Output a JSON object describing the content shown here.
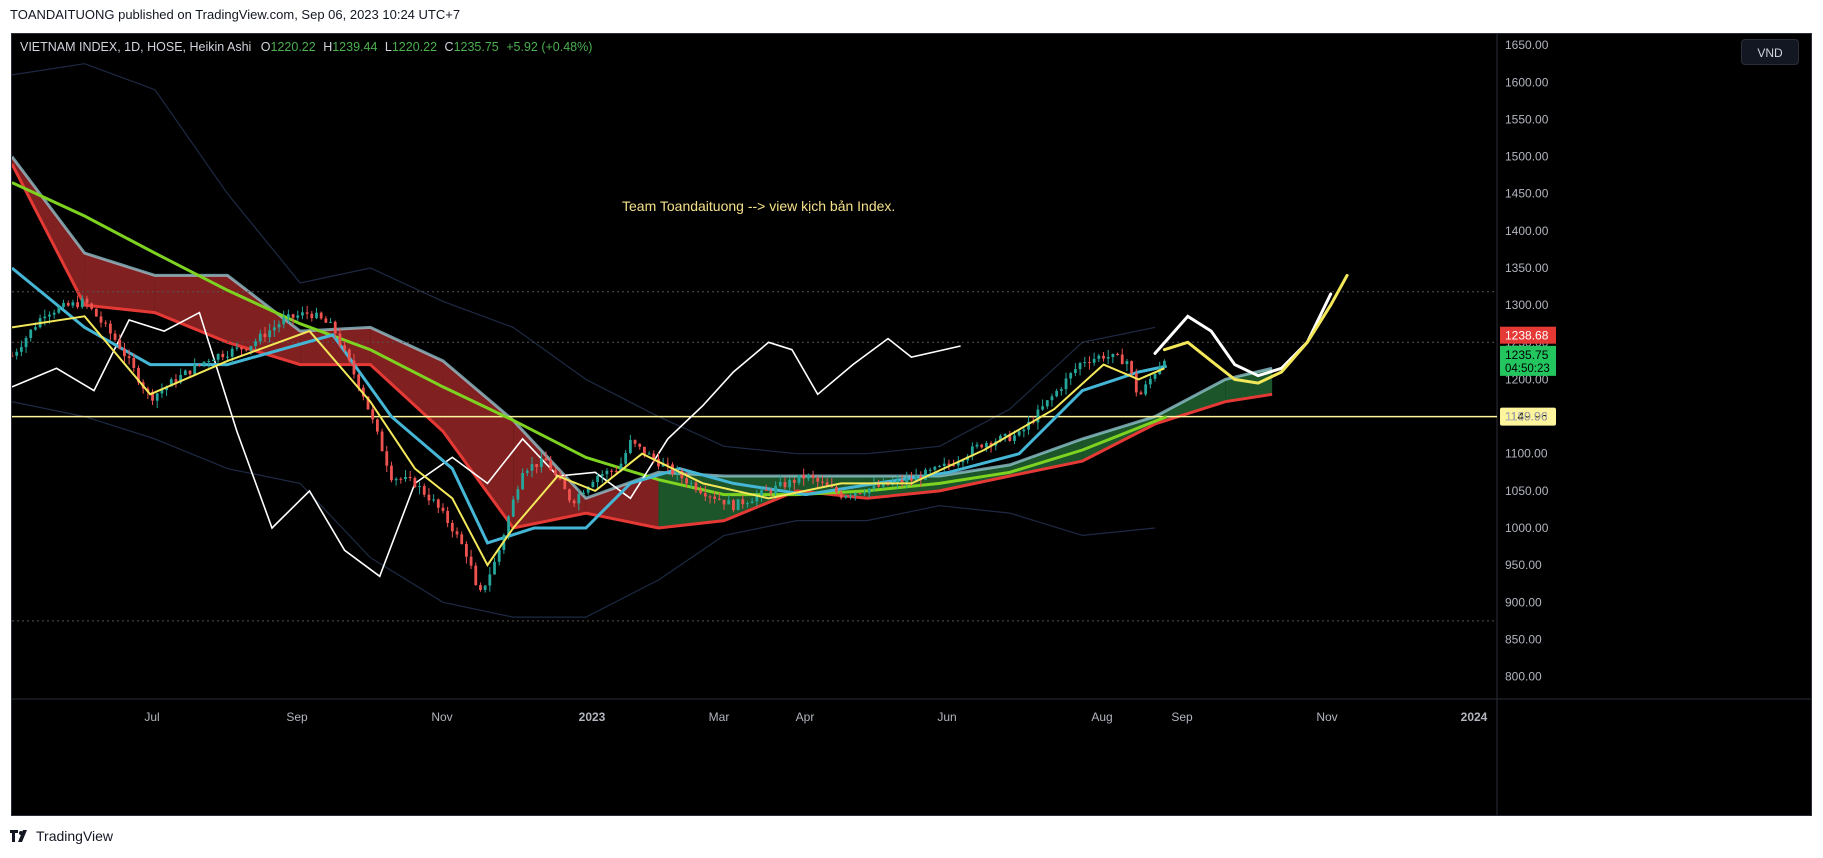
{
  "header": {
    "publish_line": "TOANDAITUONG published on TradingView.com, Sep 06, 2023 10:24 UTC+7"
  },
  "legend": {
    "symbol": "VIETNAM INDEX, 1D, HOSE, Heikin Ashi",
    "open_label": "O",
    "open": "1220.22",
    "high_label": "H",
    "high": "1239.44",
    "low_label": "L",
    "low": "1220.22",
    "close_label": "C",
    "close": "1235.75",
    "change": "+5.92 (+0.48%)"
  },
  "currency_button": "VND",
  "annotation": "Team Toandaituong --> view kịch bản Index.",
  "footer": {
    "brand": "TradingView"
  },
  "colors": {
    "background": "#000000",
    "up": "#26a69a",
    "down": "#ef5350",
    "kijun": "#45b6d6",
    "tenkan": "#f3e85a",
    "lagging": "#ffffff",
    "ma": "#7ed321",
    "cloud_bull": "#1f5e2e",
    "cloud_bear": "#8f2424",
    "price_label_red": "#e53935",
    "price_label_green": "#22c55e",
    "level_label": "#fff59d"
  },
  "chart_data": {
    "type": "line",
    "timeframe": "1D",
    "candle_style": "Heikin Ashi",
    "x_ticks": [
      "Jul",
      "Sep",
      "Nov",
      "2023",
      "Mar",
      "Apr",
      "Jun",
      "Aug",
      "Sep",
      "Nov",
      "2024"
    ],
    "y_ticks": [
      800,
      850,
      900,
      950,
      1000,
      1050,
      1100,
      1150,
      1200,
      1250,
      1300,
      1350,
      1400,
      1450,
      1500,
      1550,
      1600,
      1650
    ],
    "y_tick_labels": [
      "800.00",
      "850.00",
      "900.00",
      "950.00",
      "1000.00",
      "1050.00",
      "1100.00",
      "1150.00",
      "1200.00",
      "1250.00",
      "1300.00",
      "1350.00",
      "1400.00",
      "1450.00",
      "1500.00",
      "1550.00",
      "1600.00",
      "1650.00"
    ],
    "ylim": [
      790,
      1665
    ],
    "xlim": [
      "2022-05-01",
      "2024-01-25"
    ],
    "horizontal_levels": [
      {
        "value": 1149.96,
        "label": "1149.96",
        "style": "solid"
      },
      {
        "value": 1318,
        "style": "dotted"
      },
      {
        "value": 1250,
        "style": "dotted"
      },
      {
        "value": 875,
        "style": "dotted"
      }
    ],
    "price_labels": [
      {
        "value": 1238.68,
        "label": "1238.68",
        "kind": "high"
      },
      {
        "value": 1235.75,
        "label": "1235.75",
        "countdown": "04:50:23",
        "kind": "last"
      }
    ],
    "series": [
      {
        "key": "price",
        "points": [
          [
            "2022-05-01",
            1232
          ],
          [
            "2022-05-15",
            1290
          ],
          [
            "2022-06-01",
            1305
          ],
          [
            "2022-06-15",
            1250
          ],
          [
            "2022-06-29",
            1175
          ],
          [
            "2022-07-10",
            1200
          ],
          [
            "2022-07-25",
            1230
          ],
          [
            "2022-08-10",
            1245
          ],
          [
            "2022-08-25",
            1280
          ],
          [
            "2022-09-05",
            1290
          ],
          [
            "2022-09-15",
            1270
          ],
          [
            "2022-09-28",
            1180
          ],
          [
            "2022-10-10",
            1070
          ],
          [
            "2022-10-20",
            1060
          ],
          [
            "2022-10-28",
            1035
          ],
          [
            "2022-11-05",
            1000
          ],
          [
            "2022-11-12",
            960
          ],
          [
            "2022-11-16",
            905
          ],
          [
            "2022-11-24",
            960
          ],
          [
            "2022-12-05",
            1080
          ],
          [
            "2022-12-15",
            1090
          ],
          [
            "2022-12-26",
            1035
          ],
          [
            "2023-01-05",
            1070
          ],
          [
            "2023-01-15",
            1080
          ],
          [
            "2023-01-20",
            1115
          ],
          [
            "2023-02-05",
            1080
          ],
          [
            "2023-02-20",
            1050
          ],
          [
            "2023-03-05",
            1030
          ],
          [
            "2023-03-20",
            1050
          ],
          [
            "2023-04-05",
            1070
          ],
          [
            "2023-04-20",
            1045
          ],
          [
            "2023-05-05",
            1055
          ],
          [
            "2023-05-20",
            1065
          ],
          [
            "2023-06-05",
            1085
          ],
          [
            "2023-06-20",
            1115
          ],
          [
            "2023-07-05",
            1125
          ],
          [
            "2023-07-20",
            1180
          ],
          [
            "2023-08-01",
            1225
          ],
          [
            "2023-08-10",
            1232
          ],
          [
            "2023-08-20",
            1225
          ],
          [
            "2023-08-25",
            1175
          ],
          [
            "2023-09-06",
            1235.75
          ]
        ]
      },
      {
        "key": "tenkan",
        "points": [
          [
            "2022-05-01",
            1270
          ],
          [
            "2022-06-01",
            1285
          ],
          [
            "2022-06-29",
            1180
          ],
          [
            "2022-08-01",
            1225
          ],
          [
            "2022-09-05",
            1265
          ],
          [
            "2022-10-01",
            1170
          ],
          [
            "2022-10-20",
            1080
          ],
          [
            "2022-11-05",
            1040
          ],
          [
            "2022-11-20",
            950
          ],
          [
            "2022-12-01",
            1000
          ],
          [
            "2022-12-20",
            1070
          ],
          [
            "2023-01-05",
            1050
          ],
          [
            "2023-01-25",
            1100
          ],
          [
            "2023-02-20",
            1060
          ],
          [
            "2023-03-20",
            1040
          ],
          [
            "2023-04-20",
            1060
          ],
          [
            "2023-05-20",
            1060
          ],
          [
            "2023-06-20",
            1105
          ],
          [
            "2023-07-20",
            1160
          ],
          [
            "2023-08-10",
            1220
          ],
          [
            "2023-08-25",
            1200
          ],
          [
            "2023-09-05",
            1215
          ]
        ]
      },
      {
        "key": "kijun",
        "points": [
          [
            "2022-05-01",
            1350
          ],
          [
            "2022-06-01",
            1270
          ],
          [
            "2022-06-29",
            1220
          ],
          [
            "2022-08-01",
            1220
          ],
          [
            "2022-09-15",
            1260
          ],
          [
            "2022-10-10",
            1150
          ],
          [
            "2022-11-05",
            1080
          ],
          [
            "2022-11-20",
            980
          ],
          [
            "2022-12-10",
            1000
          ],
          [
            "2023-01-01",
            1000
          ],
          [
            "2023-01-20",
            1060
          ],
          [
            "2023-02-10",
            1080
          ],
          [
            "2023-03-05",
            1060
          ],
          [
            "2023-04-05",
            1045
          ],
          [
            "2023-05-05",
            1060
          ],
          [
            "2023-06-05",
            1075
          ],
          [
            "2023-07-05",
            1100
          ],
          [
            "2023-08-01",
            1185
          ],
          [
            "2023-08-25",
            1210
          ],
          [
            "2023-09-06",
            1218
          ]
        ]
      },
      {
        "key": "ma",
        "points": [
          [
            "2022-05-01",
            1465
          ],
          [
            "2022-06-01",
            1420
          ],
          [
            "2022-07-01",
            1370
          ],
          [
            "2022-08-01",
            1320
          ],
          [
            "2022-09-01",
            1275
          ],
          [
            "2022-10-01",
            1240
          ],
          [
            "2022-11-01",
            1190
          ],
          [
            "2022-12-01",
            1145
          ],
          [
            "2023-01-01",
            1095
          ],
          [
            "2023-02-01",
            1065
          ],
          [
            "2023-03-01",
            1045
          ],
          [
            "2023-04-01",
            1045
          ],
          [
            "2023-05-01",
            1050
          ],
          [
            "2023-06-01",
            1060
          ],
          [
            "2023-07-01",
            1075
          ],
          [
            "2023-08-01",
            1105
          ],
          [
            "2023-09-06",
            1150
          ]
        ]
      },
      {
        "key": "lagging",
        "points": [
          [
            "2022-05-01",
            1190
          ],
          [
            "2022-05-20",
            1215
          ],
          [
            "2022-06-05",
            1185
          ],
          [
            "2022-06-20",
            1280
          ],
          [
            "2022-07-05",
            1265
          ],
          [
            "2022-07-20",
            1290
          ],
          [
            "2022-08-05",
            1130
          ],
          [
            "2022-08-20",
            1000
          ],
          [
            "2022-09-05",
            1050
          ],
          [
            "2022-09-20",
            970
          ],
          [
            "2022-10-05",
            935
          ],
          [
            "2022-10-20",
            1060
          ],
          [
            "2022-11-05",
            1095
          ],
          [
            "2022-11-20",
            1060
          ],
          [
            "2022-12-05",
            1120
          ],
          [
            "2022-12-20",
            1070
          ],
          [
            "2023-01-05",
            1075
          ],
          [
            "2023-01-20",
            1040
          ],
          [
            "2023-02-05",
            1120
          ],
          [
            "2023-02-20",
            1165
          ],
          [
            "2023-03-05",
            1210
          ],
          [
            "2023-03-20",
            1250
          ],
          [
            "2023-03-30",
            1240
          ],
          [
            "2023-04-10",
            1180
          ],
          [
            "2023-04-25",
            1220
          ],
          [
            "2023-05-10",
            1255
          ],
          [
            "2023-05-20",
            1230
          ],
          [
            "2023-06-10",
            1245
          ]
        ]
      },
      {
        "key": "cloud_upper",
        "points": [
          [
            "2022-05-01",
            1500
          ],
          [
            "2022-06-01",
            1370
          ],
          [
            "2022-07-01",
            1340
          ],
          [
            "2022-08-01",
            1340
          ],
          [
            "2022-09-01",
            1265
          ],
          [
            "2022-10-01",
            1270
          ],
          [
            "2022-11-01",
            1225
          ],
          [
            "2022-12-01",
            1145
          ],
          [
            "2023-01-01",
            1040
          ],
          [
            "2023-02-01",
            1075
          ],
          [
            "2023-03-01",
            1070
          ],
          [
            "2023-04-01",
            1070
          ],
          [
            "2023-05-01",
            1070
          ],
          [
            "2023-06-01",
            1070
          ],
          [
            "2023-07-01",
            1085
          ],
          [
            "2023-08-01",
            1120
          ],
          [
            "2023-09-01",
            1150
          ],
          [
            "2023-10-01",
            1200
          ],
          [
            "2023-10-21",
            1215
          ]
        ]
      },
      {
        "key": "cloud_lower",
        "points": [
          [
            "2022-05-01",
            1490
          ],
          [
            "2022-06-01",
            1300
          ],
          [
            "2022-07-01",
            1290
          ],
          [
            "2022-08-01",
            1250
          ],
          [
            "2022-09-01",
            1220
          ],
          [
            "2022-10-01",
            1220
          ],
          [
            "2022-11-01",
            1130
          ],
          [
            "2022-12-01",
            1000
          ],
          [
            "2023-01-01",
            1020
          ],
          [
            "2023-02-01",
            1000
          ],
          [
            "2023-03-01",
            1010
          ],
          [
            "2023-04-01",
            1050
          ],
          [
            "2023-05-01",
            1040
          ],
          [
            "2023-06-01",
            1050
          ],
          [
            "2023-07-01",
            1070
          ],
          [
            "2023-08-01",
            1090
          ],
          [
            "2023-09-01",
            1140
          ],
          [
            "2023-10-01",
            1170
          ],
          [
            "2023-10-21",
            1180
          ]
        ]
      },
      {
        "key": "bb_upper",
        "points": [
          [
            "2022-05-01",
            1610
          ],
          [
            "2022-06-01",
            1625
          ],
          [
            "2022-07-01",
            1590
          ],
          [
            "2022-08-01",
            1450
          ],
          [
            "2022-09-01",
            1330
          ],
          [
            "2022-10-01",
            1350
          ],
          [
            "2022-11-01",
            1305
          ],
          [
            "2022-12-01",
            1270
          ],
          [
            "2023-01-01",
            1200
          ],
          [
            "2023-02-01",
            1150
          ],
          [
            "2023-03-01",
            1110
          ],
          [
            "2023-04-01",
            1100
          ],
          [
            "2023-05-01",
            1100
          ],
          [
            "2023-06-01",
            1110
          ],
          [
            "2023-07-01",
            1160
          ],
          [
            "2023-08-01",
            1250
          ],
          [
            "2023-09-01",
            1270
          ]
        ]
      },
      {
        "key": "bb_lower",
        "points": [
          [
            "2022-05-01",
            1170
          ],
          [
            "2022-06-01",
            1150
          ],
          [
            "2022-07-01",
            1120
          ],
          [
            "2022-08-01",
            1080
          ],
          [
            "2022-09-01",
            1060
          ],
          [
            "2022-10-01",
            960
          ],
          [
            "2022-11-01",
            900
          ],
          [
            "2022-12-01",
            880
          ],
          [
            "2023-01-01",
            880
          ],
          [
            "2023-02-01",
            930
          ],
          [
            "2023-03-01",
            990
          ],
          [
            "2023-04-01",
            1010
          ],
          [
            "2023-05-01",
            1010
          ],
          [
            "2023-06-01",
            1030
          ],
          [
            "2023-07-01",
            1020
          ],
          [
            "2023-08-01",
            990
          ],
          [
            "2023-09-01",
            1000
          ]
        ]
      },
      {
        "key": "forecast_white",
        "points": [
          [
            "2023-09-01",
            1235
          ],
          [
            "2023-09-15",
            1285
          ],
          [
            "2023-09-25",
            1265
          ],
          [
            "2023-10-05",
            1220
          ],
          [
            "2023-10-15",
            1205
          ],
          [
            "2023-10-25",
            1215
          ],
          [
            "2023-11-05",
            1250
          ],
          [
            "2023-11-15",
            1315
          ]
        ]
      },
      {
        "key": "forecast_yellow",
        "points": [
          [
            "2023-09-05",
            1240
          ],
          [
            "2023-09-15",
            1250
          ],
          [
            "2023-09-25",
            1225
          ],
          [
            "2023-10-05",
            1200
          ],
          [
            "2023-10-15",
            1195
          ],
          [
            "2023-10-25",
            1210
          ],
          [
            "2023-11-05",
            1250
          ],
          [
            "2023-11-15",
            1300
          ],
          [
            "2023-11-22",
            1340
          ]
        ]
      }
    ]
  }
}
